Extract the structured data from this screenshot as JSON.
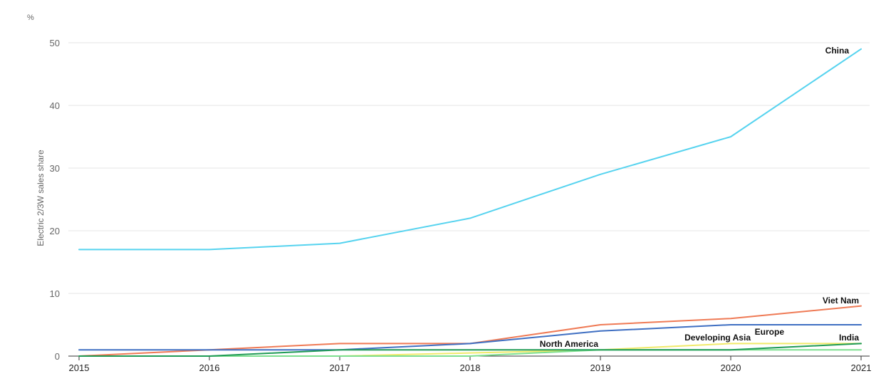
{
  "chart_data": {
    "type": "line",
    "unit": "%",
    "ylabel": "Electric 2/3W sales share",
    "x": [
      2015,
      2016,
      2017,
      2018,
      2019,
      2020,
      2021
    ],
    "ylim": [
      0,
      50
    ],
    "yticks": [
      0,
      10,
      20,
      30,
      40,
      50
    ],
    "grid": true,
    "series": [
      {
        "name": "China",
        "color": "#56d3ef",
        "values": [
          17,
          17,
          18,
          22,
          29,
          35,
          49
        ]
      },
      {
        "name": "Viet Nam",
        "color": "#ef7a55",
        "values": [
          0,
          1,
          2,
          2,
          5,
          6,
          8
        ]
      },
      {
        "name": "Europe",
        "color": "#3f6fc2",
        "values": [
          1,
          1,
          1,
          2,
          4,
          5,
          5
        ]
      },
      {
        "name": "Developing Asia",
        "color": "#f0ea6a",
        "values": [
          0,
          0,
          0,
          0.5,
          1,
          2,
          2
        ]
      },
      {
        "name": "North America",
        "color": "#7ddf8f",
        "values": [
          0,
          0,
          0,
          0,
          1,
          1,
          1
        ]
      },
      {
        "name": "India",
        "color": "#1f9a55",
        "values": [
          0,
          0,
          1,
          1,
          1,
          1,
          2
        ]
      }
    ]
  }
}
